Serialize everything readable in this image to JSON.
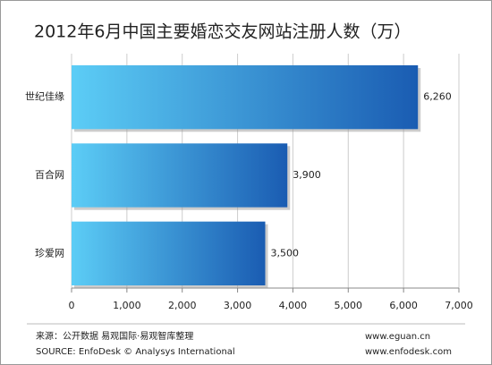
{
  "chart_data": {
    "type": "barh",
    "title": "2012年6月中国主要婚恋交友网站注册人数（万）",
    "categories": [
      "世纪佳缘",
      "百合网",
      "珍爱网"
    ],
    "values": [
      6260,
      3900,
      3500
    ],
    "value_labels": [
      "6,260",
      "3,900",
      "3,500"
    ],
    "gradient": [
      "#5ccdf6",
      "#1a5cb2"
    ],
    "xlim": [
      0,
      7000
    ],
    "xticks": [
      0,
      {
        "value": 1000,
        "label": "1,000"
      },
      {
        "value": 2000,
        "label": "2,000"
      },
      {
        "value": 3000,
        "label": "3,000"
      },
      {
        "value": 4000,
        "label": "4,000"
      },
      {
        "value": 5000,
        "label": "5,000"
      },
      {
        "value": 6000,
        "label": "6,000"
      },
      {
        "value": 7000,
        "label": "7,000"
      }
    ],
    "grid": true
  },
  "footer": {
    "source_cn": "来源：公开数据 易观国际·易观智库整理",
    "source_en": "SOURCE: EnfoDesk © Analysys International",
    "url1": "www.eguan.cn",
    "url2": "www.enfodesk.com"
  }
}
